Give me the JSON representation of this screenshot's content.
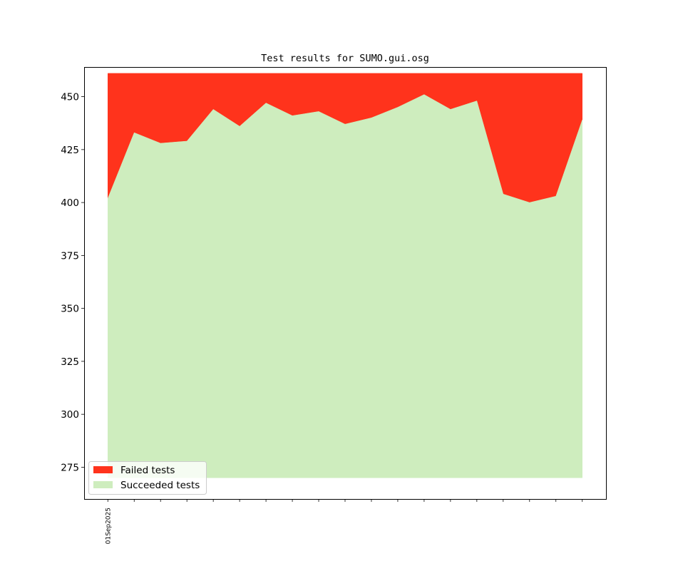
{
  "chart_data": {
    "type": "area",
    "title": "Test results for SUMO.gui.osg",
    "xlabel": "",
    "ylabel": "",
    "ylim": [
      260,
      464
    ],
    "xlim": [
      -0.9,
      18.9
    ],
    "x_ticks": [
      0,
      1,
      2,
      3,
      4,
      5,
      6,
      7,
      8,
      9,
      10,
      11,
      12,
      13,
      14,
      15,
      16,
      17,
      18
    ],
    "x_tick_labels": [
      "01Sep2025",
      "",
      "",
      "",
      "",
      "",
      "",
      "",
      "",
      "",
      "",
      "",
      "",
      "",
      "",
      "",
      "",
      "",
      ""
    ],
    "y_ticks": [
      275,
      300,
      325,
      350,
      375,
      400,
      425,
      450
    ],
    "baseline": 270,
    "total_tests": 461,
    "series": [
      {
        "name": "Failed tests",
        "color": "#ff331c",
        "values": [
          59,
          28,
          33,
          32,
          17,
          25,
          14,
          20,
          18,
          24,
          21,
          16,
          10,
          17,
          13,
          57,
          61,
          58,
          22
        ]
      },
      {
        "name": "Succeeded tests",
        "color": "#ceedbe",
        "values": [
          402,
          433,
          428,
          429,
          444,
          436,
          447,
          441,
          443,
          437,
          440,
          445,
          451,
          444,
          448,
          404,
          400,
          403,
          439
        ]
      }
    ],
    "legend": {
      "location": "lower-left",
      "entries": [
        "Failed tests",
        "Succeeded tests"
      ]
    },
    "grid": false
  }
}
